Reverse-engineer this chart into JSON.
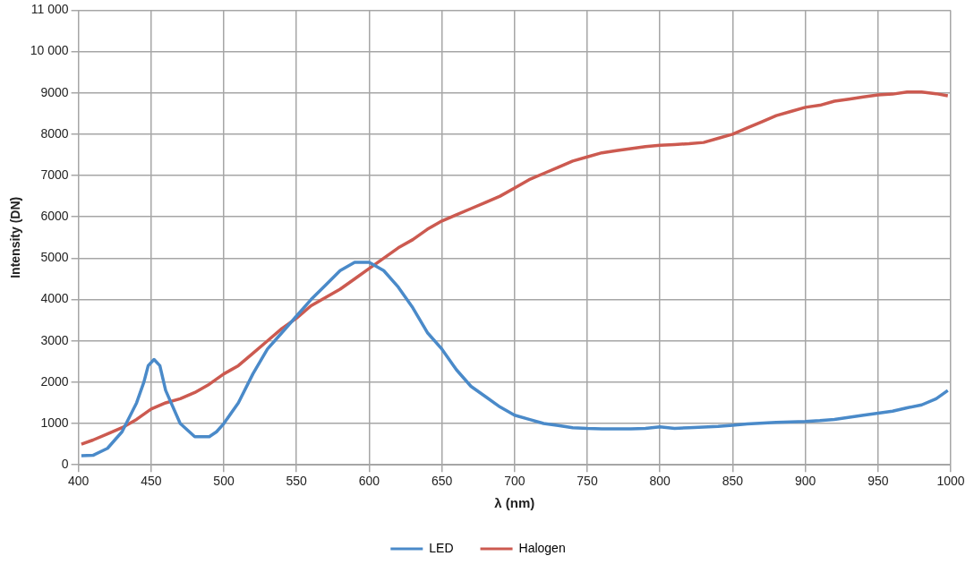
{
  "chart_data": {
    "type": "line",
    "xlabel": "λ (nm)",
    "ylabel": "Intensity (DN)",
    "xlim": [
      400,
      1000
    ],
    "xticks": [
      400,
      450,
      500,
      550,
      600,
      650,
      700,
      750,
      800,
      850,
      900,
      950,
      1000
    ],
    "ylim": [
      0,
      11000
    ],
    "yticks": [
      0,
      1000,
      2000,
      3000,
      4000,
      5000,
      6000,
      7000,
      8000,
      9000,
      {
        "value": 10000,
        "label": "10 000"
      },
      {
        "value": 11000,
        "label": "11 000"
      }
    ],
    "grid": true,
    "legend": "bottom",
    "marker": "none",
    "line_style": "solid",
    "series": [
      {
        "name": "LED",
        "color": "#4a8ac9",
        "x": [
          402,
          410,
          420,
          430,
          440,
          445,
          448,
          452,
          456,
          460,
          470,
          480,
          490,
          495,
          500,
          510,
          520,
          530,
          540,
          550,
          560,
          570,
          580,
          590,
          600,
          610,
          620,
          630,
          640,
          650,
          660,
          670,
          680,
          690,
          700,
          710,
          720,
          730,
          740,
          750,
          760,
          780,
          790,
          800,
          810,
          820,
          840,
          850,
          860,
          880,
          900,
          910,
          920,
          940,
          950,
          960,
          970,
          980,
          990,
          998
        ],
        "values": [
          220,
          230,
          400,
          800,
          1500,
          2000,
          2400,
          2550,
          2400,
          1800,
          1000,
          680,
          680,
          800,
          1000,
          1500,
          2200,
          2800,
          3200,
          3600,
          4000,
          4350,
          4700,
          4900,
          4900,
          4700,
          4300,
          3800,
          3200,
          2800,
          2300,
          1900,
          1650,
          1400,
          1200,
          1100,
          1000,
          950,
          900,
          880,
          870,
          870,
          880,
          920,
          880,
          900,
          930,
          960,
          990,
          1030,
          1050,
          1070,
          1100,
          1200,
          1250,
          1300,
          1380,
          1450,
          1600,
          1800
        ]
      },
      {
        "name": "Halogen",
        "color": "#cc5a50",
        "x": [
          402,
          410,
          420,
          430,
          440,
          450,
          460,
          470,
          480,
          490,
          500,
          510,
          520,
          530,
          540,
          550,
          560,
          570,
          580,
          590,
          600,
          610,
          620,
          630,
          640,
          650,
          660,
          670,
          680,
          690,
          700,
          710,
          720,
          730,
          740,
          750,
          760,
          770,
          780,
          790,
          800,
          810,
          820,
          830,
          840,
          850,
          860,
          870,
          880,
          890,
          900,
          910,
          920,
          930,
          940,
          950,
          960,
          970,
          980,
          990,
          998
        ],
        "values": [
          500,
          600,
          750,
          900,
          1100,
          1350,
          1500,
          1600,
          1750,
          1950,
          2200,
          2400,
          2700,
          3000,
          3300,
          3550,
          3850,
          4050,
          4250,
          4500,
          4750,
          5000,
          5250,
          5450,
          5700,
          5900,
          6050,
          6200,
          6350,
          6500,
          6700,
          6900,
          7050,
          7200,
          7350,
          7450,
          7550,
          7600,
          7650,
          7700,
          7730,
          7750,
          7770,
          7800,
          7900,
          8000,
          8150,
          8300,
          8450,
          8550,
          8650,
          8700,
          8800,
          8850,
          8900,
          8950,
          8970,
          9020,
          9020,
          8980,
          8930
        ]
      }
    ]
  }
}
